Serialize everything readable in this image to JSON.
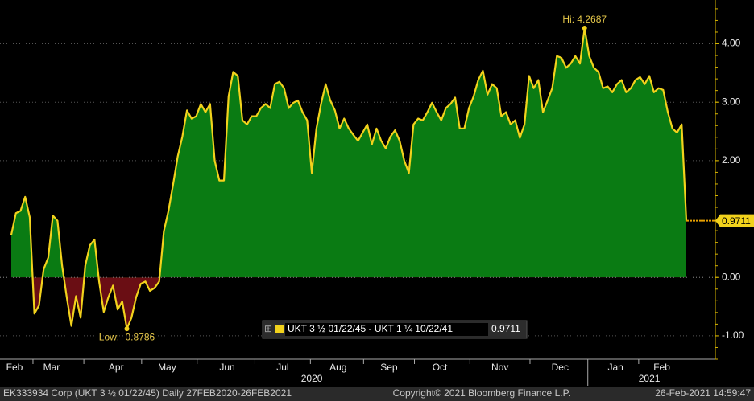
{
  "chart_data": {
    "type": "area",
    "series": [
      {
        "name": "UKT 3 ½ 01/22/45 - UKT 1 ¼ 10/22/41",
        "color": "#f2d21c",
        "values": [
          0.73,
          1.1,
          1.14,
          1.38,
          1.03,
          -0.62,
          -0.48,
          0.14,
          0.34,
          1.06,
          0.97,
          0.2,
          -0.34,
          -0.83,
          -0.32,
          -0.69,
          0.2,
          0.55,
          0.65,
          -0.07,
          -0.59,
          -0.34,
          -0.14,
          -0.55,
          -0.41,
          -0.8786,
          -0.69,
          -0.34,
          -0.11,
          -0.07,
          -0.23,
          -0.18,
          -0.07,
          0.79,
          1.14,
          1.59,
          2.07,
          2.41,
          2.86,
          2.72,
          2.76,
          2.97,
          2.83,
          2.97,
          2.0,
          1.66,
          1.66,
          3.1,
          3.52,
          3.45,
          2.69,
          2.62,
          2.76,
          2.76,
          2.9,
          2.97,
          2.9,
          3.31,
          3.35,
          3.24,
          2.9,
          2.99,
          3.03,
          2.83,
          2.69,
          1.79,
          2.55,
          2.97,
          3.31,
          3.03,
          2.86,
          2.55,
          2.72,
          2.55,
          2.44,
          2.34,
          2.48,
          2.62,
          2.28,
          2.55,
          2.34,
          2.21,
          2.41,
          2.52,
          2.34,
          2.0,
          1.79,
          2.62,
          2.72,
          2.69,
          2.83,
          2.99,
          2.83,
          2.69,
          2.9,
          2.97,
          3.08,
          2.55,
          2.55,
          2.9,
          3.1,
          3.38,
          3.54,
          3.13,
          3.31,
          3.24,
          2.76,
          2.83,
          2.62,
          2.69,
          2.39,
          2.62,
          3.45,
          3.24,
          3.38,
          2.83,
          3.03,
          3.24,
          3.79,
          3.76,
          3.59,
          3.66,
          3.79,
          3.66,
          4.2687,
          3.79,
          3.59,
          3.52,
          3.24,
          3.27,
          3.17,
          3.31,
          3.38,
          3.17,
          3.24,
          3.38,
          3.43,
          3.31,
          3.45,
          3.17,
          3.24,
          3.21,
          2.83,
          2.55,
          2.48,
          2.62,
          0.9711
        ]
      }
    ],
    "positive_fill": "#0a7b13",
    "negative_fill": "#6a0e14",
    "xlim": [
      0,
      146
    ],
    "xticks": [
      {
        "value": 0,
        "label": "Feb"
      },
      {
        "value": 8,
        "label": "Mar"
      },
      {
        "value": 22,
        "label": "Apr"
      },
      {
        "value": 33,
        "label": "May"
      },
      {
        "value": 46,
        "label": "Jun"
      },
      {
        "value": 58,
        "label": "Jul"
      },
      {
        "value": 70,
        "label": "Aug"
      },
      {
        "value": 81,
        "label": "Sep"
      },
      {
        "value": 92,
        "label": "Oct"
      },
      {
        "value": 105,
        "label": "Nov"
      },
      {
        "value": 118,
        "label": "Dec"
      },
      {
        "value": 130,
        "label": "Jan"
      },
      {
        "value": 140,
        "label": "Feb"
      }
    ],
    "year_labels": [
      {
        "value": 65,
        "label": "2020"
      },
      {
        "value": 138,
        "label": "2021"
      }
    ],
    "ylim": [
      -1.4,
      4.75
    ],
    "yticks": [
      {
        "value": -1,
        "label": "-1.00"
      },
      {
        "value": 0,
        "label": "0.00"
      },
      {
        "value": 2,
        "label": "2.00"
      },
      {
        "value": 3,
        "label": "3.00"
      },
      {
        "value": 4,
        "label": "4.00"
      }
    ],
    "grid": true,
    "annotations": {
      "high": "Hi: 4.2687",
      "low": "Low: -0.8786"
    },
    "footer": {
      "security": "EK333934 Corp (UKT 3 ½ 01/22/45)  Daily 27FEB2020-26FEB2021",
      "copyright": "Copyright© 2021 Bloomberg Finance L.P.",
      "timestamp": "26-Feb-2021 14:59:47"
    }
  }
}
